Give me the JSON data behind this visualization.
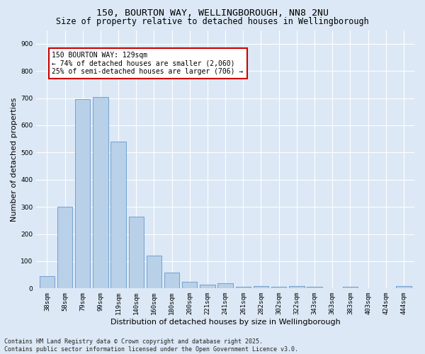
{
  "title1": "150, BOURTON WAY, WELLINGBOROUGH, NN8 2NU",
  "title2": "Size of property relative to detached houses in Wellingborough",
  "xlabel": "Distribution of detached houses by size in Wellingborough",
  "ylabel": "Number of detached properties",
  "categories": [
    "38sqm",
    "58sqm",
    "79sqm",
    "99sqm",
    "119sqm",
    "140sqm",
    "160sqm",
    "180sqm",
    "200sqm",
    "221sqm",
    "241sqm",
    "261sqm",
    "282sqm",
    "302sqm",
    "322sqm",
    "343sqm",
    "363sqm",
    "383sqm",
    "403sqm",
    "424sqm",
    "444sqm"
  ],
  "values": [
    45,
    300,
    695,
    705,
    540,
    265,
    120,
    58,
    25,
    15,
    18,
    5,
    8,
    5,
    8,
    5,
    0,
    5,
    0,
    0,
    8
  ],
  "bar_color": "#b8d0e8",
  "bar_edge_color": "#6699cc",
  "annotation_text": "150 BOURTON WAY: 129sqm\n← 74% of detached houses are smaller (2,060)\n25% of semi-detached houses are larger (706) →",
  "annotation_box_color": "#ffffff",
  "annotation_box_edge": "#cc0000",
  "ylim": [
    0,
    950
  ],
  "yticks": [
    0,
    100,
    200,
    300,
    400,
    500,
    600,
    700,
    800,
    900
  ],
  "footer": "Contains HM Land Registry data © Crown copyright and database right 2025.\nContains public sector information licensed under the Open Government Licence v3.0.",
  "bg_color": "#dce8f5",
  "grid_color": "#ffffff",
  "title_fontsize": 9.5,
  "subtitle_fontsize": 8.5,
  "axis_label_fontsize": 8,
  "tick_fontsize": 6.5,
  "annotation_fontsize": 7,
  "footer_fontsize": 6
}
